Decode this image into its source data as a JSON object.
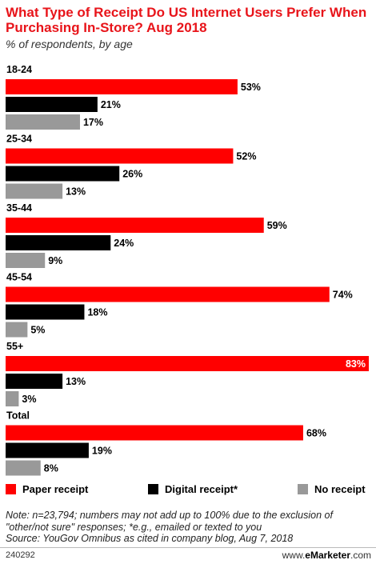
{
  "chart_data": {
    "type": "bar",
    "orientation": "horizontal",
    "title": "What Type of Receipt Do US Internet Users Prefer When Purchasing In-Store? Aug 2018",
    "subtitle": "% of respondents, by age",
    "categories": [
      "18-24",
      "25-34",
      "35-44",
      "45-54",
      "55+",
      "Total"
    ],
    "series": [
      {
        "name": "Paper receipt",
        "color": "#ff0000",
        "values": [
          53,
          52,
          59,
          74,
          83,
          68
        ]
      },
      {
        "name": "Digital receipt*",
        "color": "#000000",
        "values": [
          21,
          26,
          24,
          18,
          13,
          19
        ]
      },
      {
        "name": "No receipt",
        "color": "#999999",
        "values": [
          17,
          13,
          9,
          5,
          3,
          8
        ]
      }
    ],
    "value_suffix": "%",
    "xlim": [
      0,
      83
    ],
    "grid": false,
    "legend_position": "bottom"
  },
  "note": "Note: n=23,794; numbers may not add up to 100% due to the exclusion of \"other/not sure\" responses; *e.g., emailed or texted to you",
  "source": "Source: YouGov Omnibus as cited in company blog, Aug 7, 2018",
  "footer": {
    "id": "240292",
    "brand_prefix": "www.",
    "brand_name": "eMarketer",
    "brand_suffix": ".com"
  }
}
